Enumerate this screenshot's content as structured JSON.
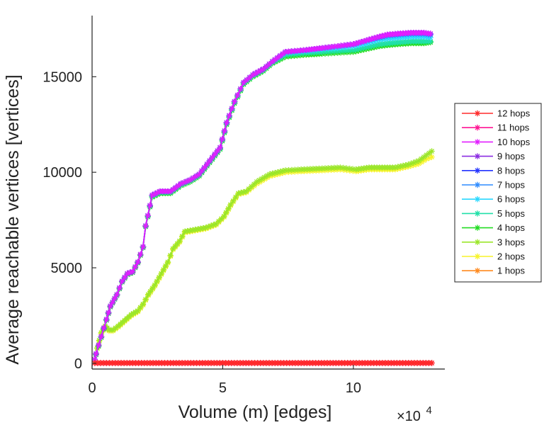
{
  "chart_data": {
    "type": "line",
    "title": "",
    "xlabel": "Volume (m) [edges]",
    "ylabel": "Average reachable vertices [vertices]",
    "x_multiplier_label": "×10",
    "x_multiplier_exponent": "4",
    "xlim": [
      0,
      13.5
    ],
    "ylim": [
      -300,
      18200
    ],
    "xticks": [
      0,
      5,
      10
    ],
    "xtick_labels": [
      "0",
      "5",
      "10"
    ],
    "yticks": [
      0,
      5000,
      10000,
      15000
    ],
    "ytick_labels": [
      "0",
      "5000",
      "10000",
      "15000"
    ],
    "grid": false,
    "legend_position": "right",
    "series": [
      {
        "name": "12 hops",
        "color": "#ff2a2a",
        "x": [
          0.1,
          1.0,
          2.0,
          3.0,
          4.0,
          5.0,
          6.0,
          7.0,
          8.0,
          9.0,
          10.0,
          11.0,
          12.0,
          13.0
        ],
        "y": [
          15,
          15,
          15,
          15,
          15,
          15,
          15,
          15,
          15,
          15,
          15,
          15,
          15,
          15
        ]
      },
      {
        "name": "11 hops",
        "color": "#ff1493",
        "x": [
          0.1,
          1.0,
          2.0,
          3.0,
          4.0,
          5.0,
          6.0,
          7.0,
          8.0,
          9.0,
          10.0,
          11.0,
          12.0,
          13.0
        ],
        "y": [
          15,
          15,
          15,
          15,
          15,
          15,
          15,
          15,
          15,
          15,
          15,
          15,
          15,
          15
        ]
      },
      {
        "name": "10 hops",
        "color": "#e21fff",
        "x": [
          0.1,
          0.15,
          0.35,
          0.55,
          0.7,
          0.95,
          1.15,
          1.35,
          1.55,
          1.75,
          1.95,
          2.05,
          2.3,
          2.6,
          3.0,
          3.4,
          3.75,
          4.1,
          4.5,
          4.9,
          5.15,
          5.45,
          5.8,
          6.15,
          6.55,
          6.9,
          7.4,
          8.2,
          8.8,
          9.4,
          10.0,
          10.5,
          11.0,
          11.3,
          11.7,
          12.2,
          12.7,
          12.95
        ],
        "y": [
          200,
          500,
          1400,
          2300,
          3000,
          3600,
          4300,
          4700,
          4800,
          5300,
          6100,
          7200,
          8800,
          9000,
          9000,
          9400,
          9600,
          9900,
          10600,
          11300,
          12600,
          13700,
          14700,
          15100,
          15400,
          15800,
          16300,
          16400,
          16500,
          16600,
          16700,
          16900,
          17100,
          17200,
          17250,
          17300,
          17300,
          17250
        ]
      },
      {
        "name": "9 hops",
        "color": "#8a2be2",
        "x": [
          0.1,
          0.15,
          0.35,
          0.55,
          0.7,
          0.95,
          1.15,
          1.35,
          1.55,
          1.75,
          1.95,
          2.05,
          2.3,
          2.6,
          3.0,
          3.4,
          3.75,
          4.1,
          4.5,
          4.9,
          5.15,
          5.45,
          5.8,
          6.15,
          6.55,
          6.9,
          7.4,
          8.2,
          8.8,
          9.4,
          10.0,
          10.5,
          11.0,
          11.3,
          11.7,
          12.2,
          12.7,
          12.95
        ],
        "y": [
          200,
          500,
          1400,
          2300,
          3000,
          3600,
          4300,
          4700,
          4800,
          5300,
          6100,
          7200,
          8800,
          9000,
          9000,
          9400,
          9600,
          9900,
          10600,
          11300,
          12600,
          13700,
          14700,
          15100,
          15400,
          15800,
          16300,
          16400,
          16500,
          16600,
          16700,
          16900,
          17100,
          17200,
          17250,
          17300,
          17300,
          17250
        ]
      },
      {
        "name": "8 hops",
        "color": "#2233ff",
        "x": [
          0.1,
          0.15,
          0.35,
          0.55,
          0.7,
          0.95,
          1.15,
          1.35,
          1.55,
          1.75,
          1.95,
          2.05,
          2.3,
          2.6,
          3.0,
          3.4,
          3.75,
          4.1,
          4.5,
          4.9,
          5.15,
          5.45,
          5.8,
          6.15,
          6.55,
          6.9,
          7.4,
          8.2,
          8.8,
          9.4,
          10.0,
          10.5,
          11.0,
          11.3,
          11.7,
          12.2,
          12.7,
          12.95
        ],
        "y": [
          200,
          500,
          1400,
          2300,
          3000,
          3600,
          4300,
          4700,
          4800,
          5300,
          6100,
          7200,
          8800,
          9000,
          9000,
          9400,
          9600,
          9900,
          10600,
          11300,
          12600,
          13700,
          14700,
          15100,
          15400,
          15800,
          16300,
          16400,
          16500,
          16600,
          16700,
          16900,
          17100,
          17200,
          17250,
          17300,
          17300,
          17250
        ]
      },
      {
        "name": "7 hops",
        "color": "#2f8cff",
        "x": [
          0.1,
          0.15,
          0.35,
          0.55,
          0.7,
          0.95,
          1.15,
          1.35,
          1.55,
          1.75,
          1.95,
          2.05,
          2.3,
          2.6,
          3.0,
          3.4,
          3.75,
          4.1,
          4.5,
          4.9,
          5.15,
          5.45,
          5.8,
          6.15,
          6.55,
          6.9,
          7.4,
          8.2,
          8.8,
          9.4,
          10.0,
          10.5,
          11.0,
          11.3,
          11.7,
          12.2,
          12.7,
          12.95
        ],
        "y": [
          200,
          500,
          1400,
          2300,
          3000,
          3600,
          4300,
          4700,
          4800,
          5300,
          6100,
          7200,
          8800,
          9000,
          9000,
          9400,
          9600,
          9900,
          10600,
          11300,
          12600,
          13700,
          14700,
          15100,
          15400,
          15800,
          16300,
          16400,
          16500,
          16600,
          16700,
          16900,
          17050,
          17150,
          17200,
          17250,
          17250,
          17200
        ]
      },
      {
        "name": "6 hops",
        "color": "#29d8ff",
        "x": [
          0.1,
          0.15,
          0.35,
          0.55,
          0.7,
          0.95,
          1.15,
          1.35,
          1.55,
          1.75,
          1.95,
          2.05,
          2.3,
          2.6,
          3.0,
          3.4,
          3.75,
          4.1,
          4.5,
          4.9,
          5.15,
          5.45,
          5.8,
          6.15,
          6.55,
          6.9,
          7.4,
          8.2,
          8.8,
          9.4,
          10.0,
          10.5,
          11.0,
          11.3,
          11.7,
          12.2,
          12.7,
          12.95
        ],
        "y": [
          200,
          500,
          1400,
          2300,
          3000,
          3600,
          4300,
          4700,
          4800,
          5300,
          6100,
          7200,
          8800,
          9000,
          9000,
          9400,
          9600,
          9900,
          10600,
          11300,
          12600,
          13700,
          14700,
          15100,
          15400,
          15800,
          16250,
          16350,
          16450,
          16500,
          16600,
          16750,
          16950,
          17000,
          17050,
          17100,
          17100,
          17050
        ]
      },
      {
        "name": "5 hops",
        "color": "#20e0a8",
        "x": [
          0.1,
          0.15,
          0.35,
          0.55,
          0.7,
          0.95,
          1.15,
          1.35,
          1.55,
          1.75,
          1.95,
          2.05,
          2.3,
          2.6,
          3.0,
          3.4,
          3.75,
          4.1,
          4.5,
          4.9,
          5.15,
          5.45,
          5.8,
          6.15,
          6.55,
          6.9,
          7.4,
          8.2,
          8.8,
          9.4,
          10.0,
          10.5,
          11.0,
          11.3,
          11.7,
          12.2,
          12.7,
          12.95
        ],
        "y": [
          200,
          480,
          1380,
          2280,
          2980,
          3580,
          4280,
          4680,
          4780,
          5280,
          6080,
          7180,
          8750,
          8950,
          8950,
          9350,
          9550,
          9850,
          10550,
          11250,
          12550,
          13650,
          14650,
          15050,
          15350,
          15750,
          16150,
          16250,
          16300,
          16350,
          16400,
          16550,
          16700,
          16750,
          16800,
          16850,
          16850,
          16850
        ]
      },
      {
        "name": "4 hops",
        "color": "#22dd22",
        "x": [
          0.1,
          0.15,
          0.35,
          0.55,
          0.7,
          0.95,
          1.15,
          1.35,
          1.55,
          1.75,
          1.95,
          2.05,
          2.3,
          2.6,
          3.0,
          3.4,
          3.75,
          4.1,
          4.5,
          4.9,
          5.15,
          5.45,
          5.8,
          6.15,
          6.55,
          6.9,
          7.4,
          8.2,
          8.8,
          9.4,
          10.0,
          10.5,
          11.0,
          11.3,
          11.7,
          12.2,
          12.7,
          12.95
        ],
        "y": [
          200,
          450,
          1350,
          2250,
          2950,
          3550,
          4250,
          4650,
          4750,
          5250,
          6050,
          7150,
          8700,
          8900,
          8900,
          9300,
          9500,
          9800,
          10500,
          11200,
          12500,
          13600,
          14600,
          15000,
          15300,
          15700,
          16050,
          16150,
          16200,
          16250,
          16300,
          16450,
          16600,
          16650,
          16700,
          16750,
          16750,
          16800
        ]
      },
      {
        "name": "3 hops",
        "color": "#9be62a",
        "x": [
          0.1,
          0.2,
          0.35,
          0.5,
          0.65,
          0.8,
          1.0,
          1.25,
          1.5,
          1.75,
          1.95,
          2.15,
          2.4,
          2.65,
          2.9,
          3.1,
          3.35,
          3.55,
          3.95,
          4.35,
          4.75,
          5.05,
          5.3,
          5.6,
          5.9,
          6.3,
          6.8,
          7.4,
          8.0,
          8.8,
          9.5,
          10.1,
          10.6,
          11.1,
          11.6,
          12.1,
          12.5,
          12.8,
          13.0
        ],
        "y": [
          100,
          800,
          1600,
          1950,
          1750,
          1750,
          1950,
          2250,
          2550,
          2750,
          3100,
          3600,
          4100,
          4700,
          5300,
          6000,
          6400,
          6900,
          7000,
          7100,
          7300,
          7700,
          8300,
          8900,
          9000,
          9500,
          9900,
          10100,
          10150,
          10200,
          10250,
          10150,
          10250,
          10250,
          10250,
          10400,
          10600,
          10900,
          11100
        ]
      },
      {
        "name": "2 hops",
        "color": "#f7f42a",
        "x": [
          0.1,
          0.2,
          0.35,
          0.5,
          0.65,
          0.8,
          1.0,
          1.25,
          1.5,
          1.75,
          1.95,
          2.15,
          2.4,
          2.65,
          2.9,
          3.1,
          3.35,
          3.55,
          3.95,
          4.35,
          4.75,
          5.05,
          5.3,
          5.6,
          5.9,
          6.3,
          6.8,
          7.4,
          8.0,
          8.8,
          9.5,
          10.1,
          10.6,
          11.1,
          11.6,
          12.1,
          12.5,
          12.8,
          13.0
        ],
        "y": [
          100,
          780,
          1550,
          1900,
          1700,
          1700,
          1900,
          2200,
          2500,
          2700,
          3050,
          3550,
          4050,
          4650,
          5250,
          5950,
          6350,
          6850,
          6950,
          7050,
          7250,
          7650,
          8250,
          8850,
          8950,
          9400,
          9800,
          10000,
          10050,
          10100,
          10150,
          10050,
          10150,
          10150,
          10150,
          10300,
          10450,
          10700,
          10800
        ]
      },
      {
        "name": "1 hops",
        "color": "#ff8a1f",
        "x": [
          0.1,
          1.0,
          2.0,
          3.0,
          4.0,
          5.0,
          6.0,
          7.0,
          8.0,
          9.0,
          10.0,
          11.0,
          12.0,
          13.0
        ],
        "y": [
          20,
          20,
          20,
          20,
          20,
          20,
          20,
          20,
          20,
          20,
          20,
          20,
          20,
          20
        ]
      }
    ],
    "legend": [
      "12 hops",
      "11 hops",
      "10 hops",
      "9 hops",
      "8 hops",
      "7 hops",
      "6 hops",
      "5 hops",
      "4 hops",
      "3 hops",
      "2 hops",
      "1 hops"
    ]
  }
}
